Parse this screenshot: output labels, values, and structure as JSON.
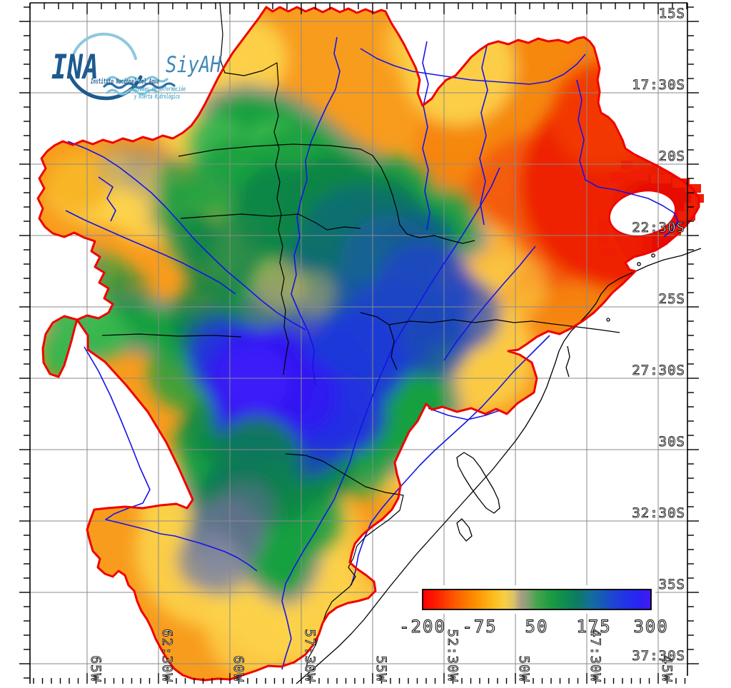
{
  "logo": {
    "ina": "INA",
    "siyah": "SiyAH",
    "line1": "Instituto Nacional del Agua",
    "line2": "Sistemas de información",
    "line3": "y Alerta Hidrológico"
  },
  "axes": {
    "lat_labels": [
      "15S",
      "17:30S",
      "20S",
      "22:30S",
      "25S",
      "27:30S",
      "30S",
      "32:30S",
      "35S",
      "37:30S"
    ],
    "lon_labels": [
      "65W",
      "62:30W",
      "60W",
      "57:30W",
      "55W",
      "52:30W",
      "50W",
      "47:30W",
      "45W"
    ]
  },
  "colorbar": {
    "tick_labels": [
      "-200",
      "-75",
      "50",
      "175",
      "300"
    ],
    "min": -200,
    "max": 300,
    "gradient": [
      "#FB0000",
      "#FC5A00",
      "#FD8E00",
      "#FDBC1E",
      "#F8CE44",
      "#A89E84",
      "#46A44C",
      "#108C4E",
      "#0D7A64",
      "#175CB4",
      "#1E42D6",
      "#2A22F2",
      "#4618F0"
    ]
  },
  "map": {
    "type": "shaded-anomaly-map",
    "region": "La Plata basin, South America",
    "basin_outline_color": "#F00000",
    "river_color": "#1414E8",
    "border_color": "#000000",
    "grid_color": "#8A8A8A",
    "lat_gridlines": [
      "15S",
      "17:30S",
      "20S",
      "22:30S",
      "25S",
      "27:30S",
      "30S",
      "32:30S",
      "35S",
      "37:30S"
    ],
    "lon_gridlines": [
      "65W",
      "62:30W",
      "60W",
      "57:30W",
      "55W",
      "52:30W",
      "50W",
      "47:30W",
      "45W"
    ]
  }
}
